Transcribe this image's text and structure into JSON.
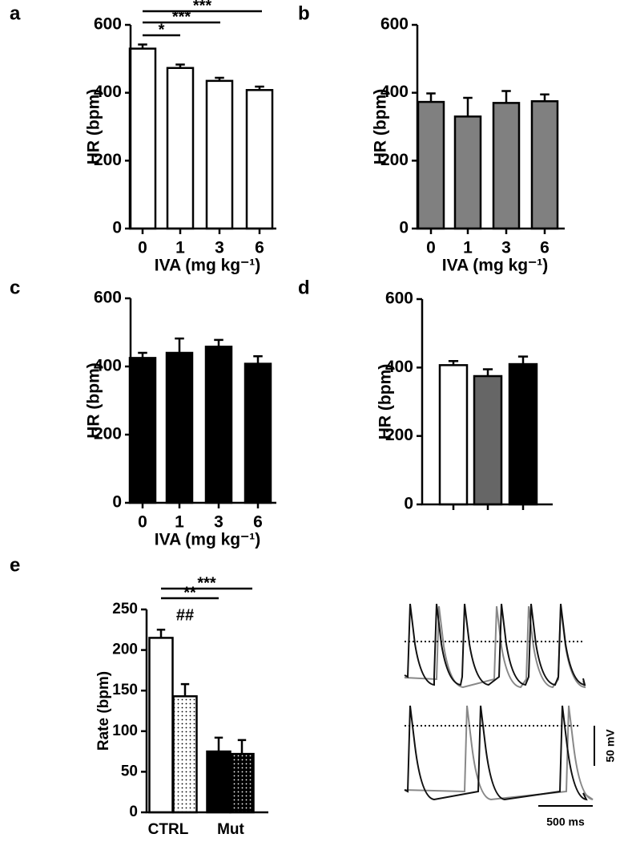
{
  "chart_data": [
    {
      "type": "bar",
      "panel": "a",
      "ylabel": "HR (bpm)",
      "xlabel": "IVA (mg kg⁻¹)",
      "categories": [
        "0",
        "1",
        "3",
        "6"
      ],
      "values": [
        530,
        473,
        435,
        408
      ],
      "errors": [
        12,
        10,
        9,
        10
      ],
      "color": "#ffffff",
      "ylim": [
        0,
        600
      ],
      "yticks": [
        0,
        200,
        400,
        600
      ],
      "annotations": [
        "*",
        "***",
        "***"
      ]
    },
    {
      "type": "bar",
      "panel": "b",
      "ylabel": "HR (bpm)",
      "xlabel": "IVA (mg kg⁻¹)",
      "categories": [
        "0",
        "1",
        "3",
        "6"
      ],
      "values": [
        373,
        330,
        370,
        375
      ],
      "errors": [
        25,
        55,
        35,
        20
      ],
      "color": "#808080",
      "ylim": [
        0,
        600
      ],
      "yticks": [
        0,
        200,
        400,
        600
      ]
    },
    {
      "type": "bar",
      "panel": "c",
      "ylabel": "HR (bpm)",
      "xlabel": "IVA (mg kg⁻¹)",
      "categories": [
        "0",
        "1",
        "3",
        "6"
      ],
      "values": [
        425,
        440,
        458,
        408
      ],
      "errors": [
        15,
        42,
        20,
        22
      ],
      "color": "#000000",
      "ylim": [
        0,
        600
      ],
      "yticks": [
        0,
        200,
        400,
        600
      ]
    },
    {
      "type": "bar",
      "panel": "d",
      "ylabel": "HR (bpm)",
      "categories": [
        null,
        null,
        null
      ],
      "values": [
        407,
        375,
        410
      ],
      "errors": [
        12,
        20,
        22
      ],
      "colors": [
        "#ffffff",
        "#666666",
        "#000000"
      ],
      "ylim": [
        0,
        600
      ],
      "yticks": [
        0,
        200,
        400,
        600
      ]
    },
    {
      "type": "grouped_bar",
      "panel": "e",
      "ylabel": "Rate (bpm)",
      "categories": [
        "CTRL",
        "Mut"
      ],
      "colors": [
        "#ffffff",
        "#000000"
      ],
      "series": [
        {
          "values": [
            215,
            75
          ],
          "errors": [
            10,
            17
          ]
        },
        {
          "values": [
            143,
            72
          ],
          "errors": [
            15,
            17
          ],
          "pattern": "dots"
        }
      ],
      "ylim": [
        0,
        250
      ],
      "yticks": [
        0,
        50,
        100,
        150,
        200,
        250
      ],
      "annotations": [
        "##",
        "**",
        "***"
      ],
      "traces": {
        "voltage_scale": "50 mV",
        "time_scale": "500 ms"
      }
    }
  ]
}
